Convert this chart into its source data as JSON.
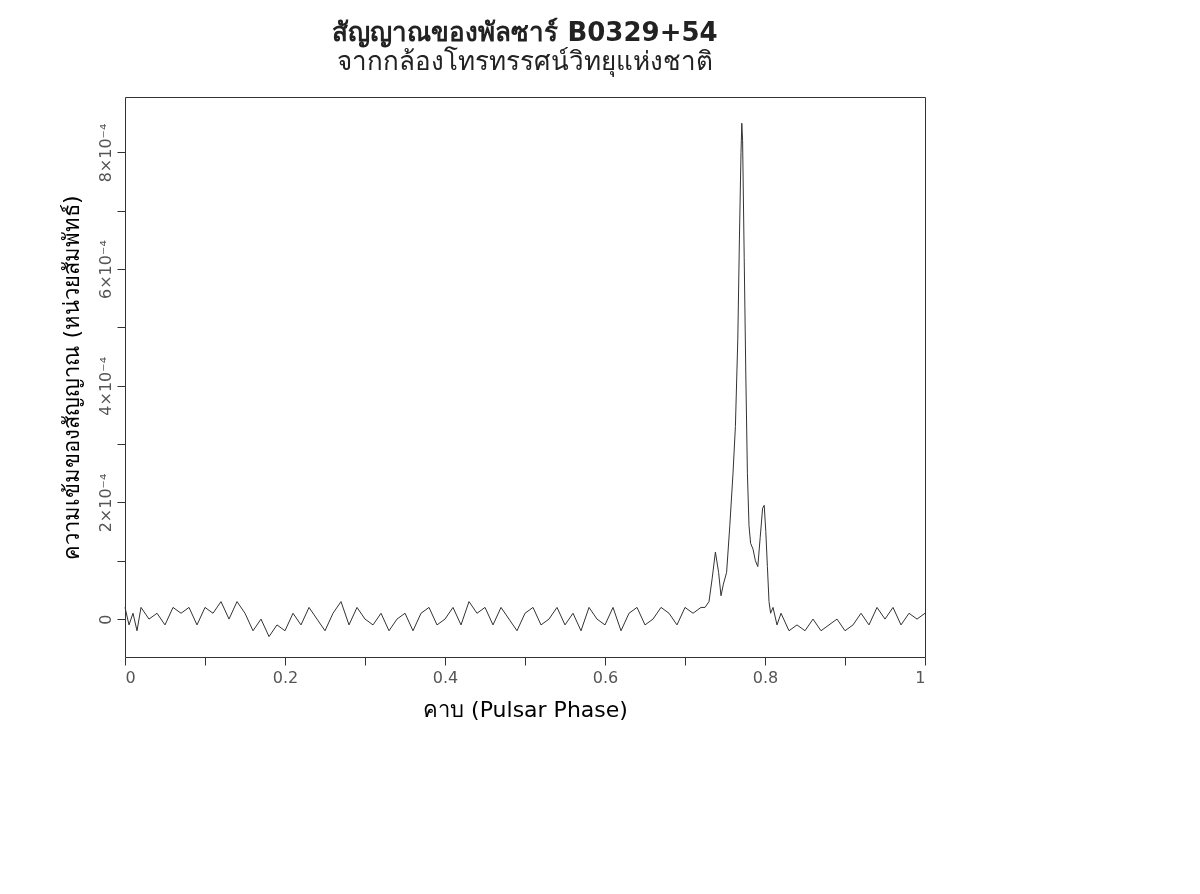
{
  "chart_data": {
    "type": "line",
    "title": "สัญญาณของพัลซาร์ B0329+54",
    "subtitle": "จากกล้องโทรทรรศน์วิทยุแห่งชาติ",
    "xlabel": "คาบ (Pulsar Phase)",
    "ylabel": "ความเข้มของสัญญาณ (หน่วยสัมพัทธ์)",
    "x": [
      0,
      0.005,
      0.01,
      0.015,
      0.02,
      0.03,
      0.04,
      0.05,
      0.06,
      0.07,
      0.08,
      0.09,
      0.1,
      0.11,
      0.12,
      0.13,
      0.14,
      0.15,
      0.16,
      0.17,
      0.18,
      0.19,
      0.2,
      0.21,
      0.22,
      0.23,
      0.24,
      0.25,
      0.26,
      0.27,
      0.28,
      0.29,
      0.3,
      0.31,
      0.32,
      0.33,
      0.34,
      0.35,
      0.36,
      0.37,
      0.38,
      0.39,
      0.4,
      0.41,
      0.42,
      0.43,
      0.44,
      0.45,
      0.46,
      0.47,
      0.48,
      0.49,
      0.5,
      0.51,
      0.52,
      0.53,
      0.54,
      0.55,
      0.56,
      0.57,
      0.58,
      0.59,
      0.6,
      0.61,
      0.62,
      0.63,
      0.64,
      0.65,
      0.66,
      0.67,
      0.68,
      0.69,
      0.7,
      0.71,
      0.72,
      0.725,
      0.73,
      0.734,
      0.738,
      0.742,
      0.745,
      0.748,
      0.752,
      0.756,
      0.76,
      0.763,
      0.766,
      0.768,
      0.77,
      0.771,
      0.772,
      0.774,
      0.776,
      0.778,
      0.78,
      0.782,
      0.785,
      0.788,
      0.791,
      0.794,
      0.797,
      0.799,
      0.801,
      0.803,
      0.805,
      0.807,
      0.81,
      0.815,
      0.82,
      0.83,
      0.84,
      0.85,
      0.86,
      0.87,
      0.88,
      0.89,
      0.9,
      0.91,
      0.92,
      0.93,
      0.94,
      0.95,
      0.96,
      0.97,
      0.98,
      0.99,
      1
    ],
    "series": [
      {
        "color": "#333333",
        "values": [
          2e-05,
          -1e-05,
          1e-05,
          -2e-05,
          2e-05,
          0.0,
          1e-05,
          -1e-05,
          2e-05,
          1e-05,
          2e-05,
          -1e-05,
          2e-05,
          1e-05,
          3e-05,
          0.0,
          3e-05,
          1e-05,
          -2e-05,
          0.0,
          -3e-05,
          -1e-05,
          -2e-05,
          1e-05,
          -1e-05,
          2e-05,
          0.0,
          -2e-05,
          1e-05,
          3e-05,
          -1e-05,
          2e-05,
          0.0,
          -1e-05,
          1e-05,
          -2e-05,
          0.0,
          1e-05,
          -2e-05,
          1e-05,
          2e-05,
          -1e-05,
          0.0,
          2e-05,
          -1e-05,
          3e-05,
          1e-05,
          2e-05,
          -1e-05,
          2e-05,
          0.0,
          -2e-05,
          1e-05,
          2e-05,
          -1e-05,
          0.0,
          2e-05,
          -1e-05,
          1e-05,
          -2e-05,
          2e-05,
          0.0,
          -1e-05,
          2e-05,
          -2e-05,
          1e-05,
          2e-05,
          -1e-05,
          0.0,
          2e-05,
          1e-05,
          -1e-05,
          2e-05,
          1e-05,
          2e-05,
          2e-05,
          3e-05,
          7e-05,
          0.000115,
          8e-05,
          4e-05,
          6e-05,
          8e-05,
          0.00016,
          0.00025,
          0.00033,
          0.00048,
          0.00065,
          0.0008,
          0.00085,
          0.00082,
          0.00062,
          0.00042,
          0.00025,
          0.00016,
          0.00013,
          0.00012,
          0.0001,
          9e-05,
          0.00014,
          0.00019,
          0.000195,
          0.00015,
          9e-05,
          3e-05,
          1e-05,
          2e-05,
          -1e-05,
          1e-05,
          -2e-05,
          -1e-05,
          -2e-05,
          0.0,
          -2e-05,
          -1e-05,
          0.0,
          -2e-05,
          -1e-05,
          1e-05,
          -1e-05,
          2e-05,
          0.0,
          2e-05,
          -1e-05,
          1e-05,
          0.0,
          1e-05
        ]
      }
    ],
    "xlim": [
      0,
      1
    ],
    "xticks": [
      0,
      {
        "value": 0.1,
        "label": null
      },
      0.2,
      {
        "value": 0.3,
        "label": null
      },
      0.4,
      {
        "value": 0.5,
        "label": null
      },
      0.6,
      {
        "value": 0.7,
        "label": null
      },
      0.8,
      {
        "value": 0.9,
        "label": null
      },
      1
    ],
    "ylim": [
      -6.5e-05,
      0.000895
    ],
    "yticks": [
      {
        "value": 0,
        "label": "0"
      },
      {
        "value": 0.0001,
        "label": null
      },
      {
        "value": 0.0002,
        "label": "2×10⁻⁴"
      },
      {
        "value": 0.0003,
        "label": null
      },
      {
        "value": 0.0004,
        "label": "4×10⁻⁴"
      },
      {
        "value": 0.0005,
        "label": null
      },
      {
        "value": 0.0006,
        "label": "6×10⁻⁴"
      },
      {
        "value": 0.0007,
        "label": null
      },
      {
        "value": 0.0008,
        "label": "8×10⁻⁴"
      }
    ],
    "grid": false,
    "marker": "none",
    "line_style": "solid"
  }
}
